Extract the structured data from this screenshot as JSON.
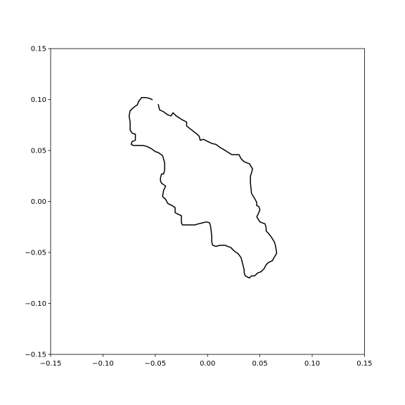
{
  "chart_data": {
    "type": "line",
    "title": "",
    "xlabel": "",
    "ylabel": "",
    "xlim": [
      -0.15,
      0.15
    ],
    "ylim": [
      -0.15,
      0.15
    ],
    "grid": false,
    "x_ticks": [
      -0.15,
      -0.1,
      -0.05,
      0.0,
      0.05,
      0.1,
      0.15
    ],
    "y_ticks": [
      -0.15,
      -0.1,
      -0.05,
      0.0,
      0.05,
      0.1,
      0.15
    ],
    "x_tick_labels": [
      "−0.15",
      "−0.10",
      "−0.05",
      "0.00",
      "0.05",
      "0.10",
      "0.15"
    ],
    "y_tick_labels": [
      "−0.15",
      "−0.10",
      "−0.05",
      "0.00",
      "0.05",
      "0.10",
      "0.15"
    ],
    "series": [
      {
        "color": "#000000",
        "points": [
          [
            -0.047,
            0.095
          ],
          [
            -0.046,
            0.09
          ],
          [
            -0.042,
            0.088
          ],
          [
            -0.038,
            0.085
          ],
          [
            -0.035,
            0.084
          ],
          [
            -0.033,
            0.087
          ],
          [
            -0.03,
            0.084
          ],
          [
            -0.024,
            0.08
          ],
          [
            -0.02,
            0.078
          ],
          [
            -0.02,
            0.074
          ],
          [
            -0.015,
            0.07
          ],
          [
            -0.01,
            0.066
          ],
          [
            -0.008,
            0.064
          ],
          [
            -0.007,
            0.06
          ],
          [
            -0.004,
            0.061
          ],
          [
            0.0,
            0.059
          ],
          [
            0.004,
            0.057
          ],
          [
            0.008,
            0.056
          ],
          [
            0.012,
            0.053
          ],
          [
            0.017,
            0.05
          ],
          [
            0.02,
            0.048
          ],
          [
            0.023,
            0.046
          ],
          [
            0.03,
            0.046
          ],
          [
            0.032,
            0.042
          ],
          [
            0.035,
            0.039
          ],
          [
            0.04,
            0.037
          ],
          [
            0.043,
            0.032
          ],
          [
            0.042,
            0.028
          ],
          [
            0.041,
            0.025
          ],
          [
            0.041,
            0.018
          ],
          [
            0.042,
            0.008
          ],
          [
            0.045,
            0.003
          ],
          [
            0.047,
            -0.001
          ],
          [
            0.047,
            -0.004
          ],
          [
            0.049,
            -0.005
          ],
          [
            0.05,
            -0.008
          ],
          [
            0.049,
            -0.011
          ],
          [
            0.047,
            -0.015
          ],
          [
            0.05,
            -0.02
          ],
          [
            0.055,
            -0.022
          ],
          [
            0.056,
            -0.026
          ],
          [
            0.056,
            -0.029
          ],
          [
            0.058,
            -0.031
          ],
          [
            0.061,
            -0.035
          ],
          [
            0.064,
            -0.04
          ],
          [
            0.065,
            -0.044
          ],
          [
            0.066,
            -0.05
          ],
          [
            0.066,
            -0.051
          ],
          [
            0.063,
            -0.056
          ],
          [
            0.062,
            -0.058
          ],
          [
            0.058,
            -0.06
          ],
          [
            0.056,
            -0.062
          ],
          [
            0.054,
            -0.066
          ],
          [
            0.051,
            -0.069
          ],
          [
            0.048,
            -0.07
          ],
          [
            0.046,
            -0.072
          ],
          [
            0.045,
            -0.073
          ],
          [
            0.042,
            -0.073
          ],
          [
            0.04,
            -0.075
          ],
          [
            0.038,
            -0.074
          ],
          [
            0.036,
            -0.073
          ],
          [
            0.035,
            -0.07
          ],
          [
            0.035,
            -0.067
          ],
          [
            0.034,
            -0.063
          ],
          [
            0.033,
            -0.059
          ],
          [
            0.032,
            -0.055
          ],
          [
            0.029,
            -0.051
          ],
          [
            0.026,
            -0.049
          ],
          [
            0.022,
            -0.045
          ],
          [
            0.019,
            -0.044
          ],
          [
            0.017,
            -0.043
          ],
          [
            0.012,
            -0.043
          ],
          [
            0.008,
            -0.044
          ],
          [
            0.005,
            -0.043
          ],
          [
            0.004,
            -0.04
          ],
          [
            0.004,
            -0.034
          ],
          [
            0.003,
            -0.025
          ],
          [
            0.002,
            -0.021
          ],
          [
            -0.001,
            -0.02
          ],
          [
            -0.005,
            -0.021
          ],
          [
            -0.009,
            -0.022
          ],
          [
            -0.012,
            -0.023
          ],
          [
            -0.017,
            -0.023
          ],
          [
            -0.02,
            -0.023
          ],
          [
            -0.024,
            -0.023
          ],
          [
            -0.025,
            -0.021
          ],
          [
            -0.025,
            -0.014
          ],
          [
            -0.027,
            -0.013
          ],
          [
            -0.031,
            -0.011
          ],
          [
            -0.031,
            -0.006
          ],
          [
            -0.034,
            -0.004
          ],
          [
            -0.038,
            -0.002
          ],
          [
            -0.04,
            0.002
          ],
          [
            -0.043,
            0.005
          ],
          [
            -0.042,
            0.011
          ],
          [
            -0.04,
            0.015
          ],
          [
            -0.044,
            0.018
          ],
          [
            -0.045,
            0.02
          ],
          [
            -0.045,
            0.023
          ],
          [
            -0.044,
            0.027
          ],
          [
            -0.042,
            0.027
          ],
          [
            -0.041,
            0.031
          ],
          [
            -0.041,
            0.038
          ],
          [
            -0.043,
            0.045
          ],
          [
            -0.047,
            0.048
          ],
          [
            -0.05,
            0.049
          ],
          [
            -0.054,
            0.052
          ],
          [
            -0.058,
            0.054
          ],
          [
            -0.062,
            0.055
          ],
          [
            -0.067,
            0.055
          ],
          [
            -0.071,
            0.055
          ],
          [
            -0.073,
            0.056
          ],
          [
            -0.072,
            0.059
          ],
          [
            -0.069,
            0.06
          ],
          [
            -0.069,
            0.066
          ],
          [
            -0.072,
            0.067
          ],
          [
            -0.074,
            0.07
          ],
          [
            -0.074,
            0.078
          ],
          [
            -0.075,
            0.084
          ],
          [
            -0.074,
            0.089
          ],
          [
            -0.071,
            0.092
          ],
          [
            -0.067,
            0.095
          ],
          [
            -0.066,
            0.098
          ],
          [
            -0.063,
            0.102
          ],
          [
            -0.059,
            0.102
          ],
          [
            -0.055,
            0.101
          ],
          [
            -0.053,
            0.1
          ]
        ]
      }
    ]
  }
}
